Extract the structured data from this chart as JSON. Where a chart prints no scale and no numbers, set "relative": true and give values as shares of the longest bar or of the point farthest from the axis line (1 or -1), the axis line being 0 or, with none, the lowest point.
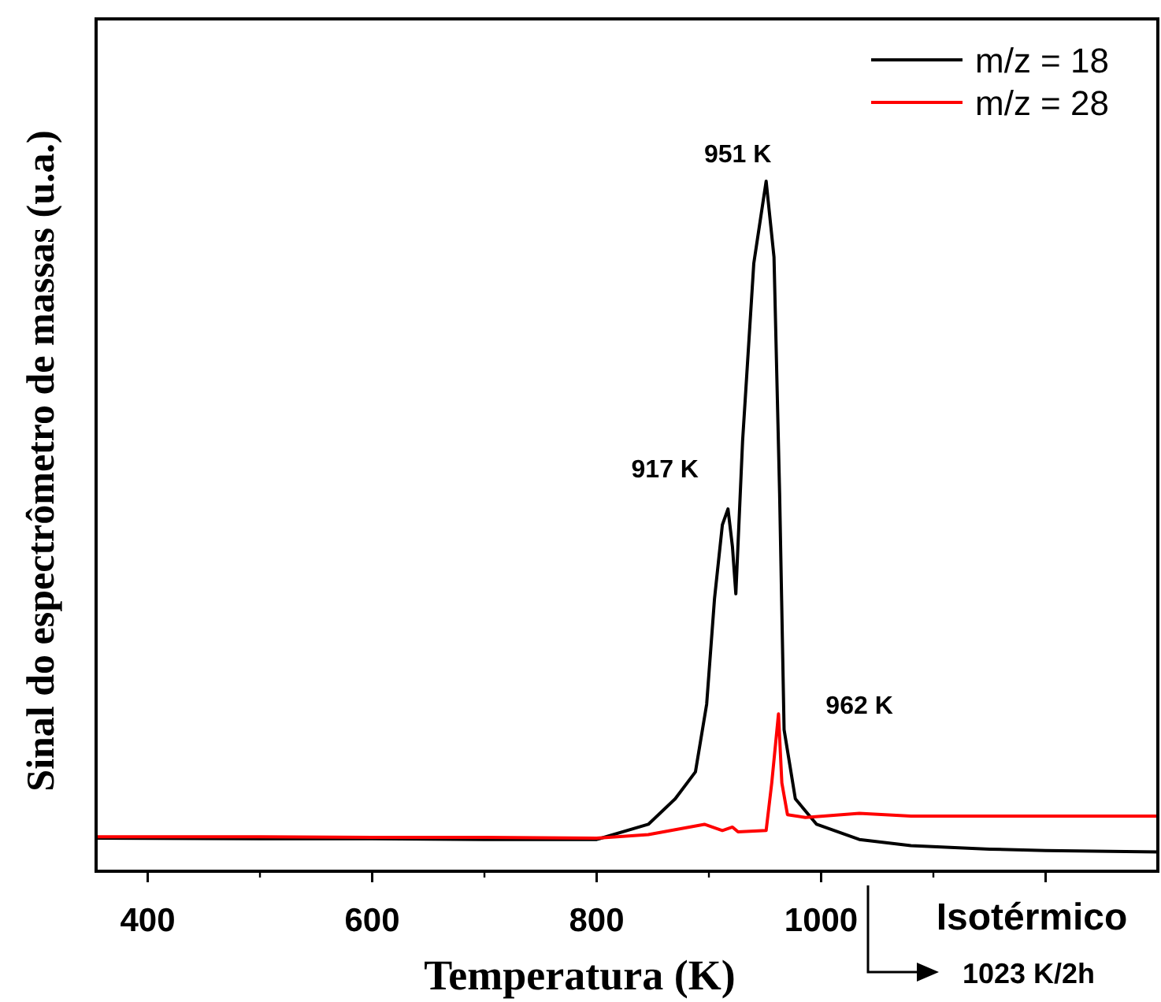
{
  "chart_data": {
    "type": "line",
    "xlabel": "Temperatura (K)",
    "ylabel": "Sinal do espectrômetro de massas (u.a.)",
    "relative": true,
    "xlim": [
      354,
      1300
    ],
    "xticks": [
      400,
      600,
      800,
      1000,
      {
        "value": 1200,
        "label": null
      }
    ],
    "legend": "top right",
    "line_style": "solid",
    "marker": "none",
    "series": [
      {
        "name": "m/z = 18",
        "color": "#000000",
        "x": [
          354,
          500,
          600,
          700,
          800,
          846,
          870,
          888,
          898,
          905,
          912,
          917,
          921,
          924,
          930,
          940,
          951,
          958,
          963,
          967,
          977,
          996,
          1034,
          1080,
          1150,
          1200,
          1300
        ],
        "values": [
          0.048,
          0.047,
          0.047,
          0.046,
          0.046,
          0.068,
          0.105,
          0.144,
          0.242,
          0.395,
          0.502,
          0.525,
          0.47,
          0.402,
          0.623,
          0.881,
          1,
          0.89,
          0.548,
          0.205,
          0.105,
          0.068,
          0.046,
          0.037,
          0.032,
          0.03,
          0.028
        ]
      },
      {
        "name": "m/z = 28",
        "color": "#ff0000",
        "x": [
          354,
          500,
          600,
          700,
          800,
          846,
          896,
          912,
          921,
          926,
          951,
          956,
          962,
          965,
          970,
          986,
          1034,
          1080,
          1200,
          1300
        ],
        "values": [
          0.05,
          0.05,
          0.049,
          0.049,
          0.048,
          0.053,
          0.068,
          0.059,
          0.064,
          0.057,
          0.059,
          0.128,
          0.228,
          0.128,
          0.082,
          0.078,
          0.084,
          0.08,
          0.08,
          0.08
        ]
      }
    ],
    "annotations": [
      {
        "text": "951 K",
        "x": 951,
        "y": 1
      },
      {
        "text": "917 K",
        "x": 917,
        "y": 0.525
      },
      {
        "text": "962 K",
        "x": 962,
        "y": 0.228
      },
      "Isotérmico",
      "1023 K/2h"
    ]
  }
}
